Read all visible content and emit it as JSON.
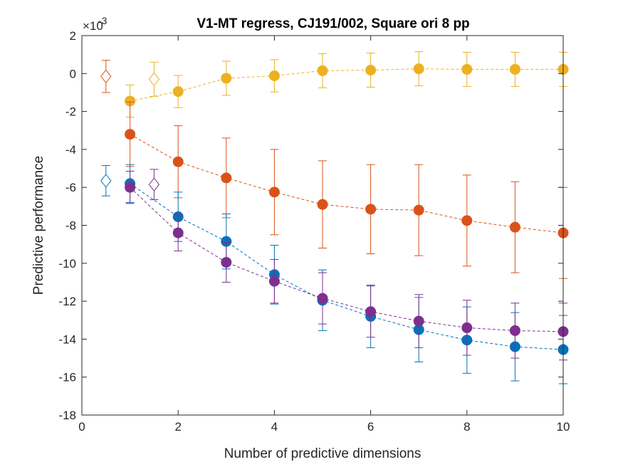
{
  "chart_data": {
    "type": "scatter",
    "title": "V1-MT regress, CJ191/002, Square ori 8 pp",
    "xlabel": "Number of predictive dimensions",
    "ylabel": "Predictive performance",
    "y_exponent_label": "×10",
    "y_exponent_power": "-3",
    "xlim": [
      0,
      10
    ],
    "ylim": [
      -18,
      2
    ],
    "xticks": [
      0,
      2,
      4,
      6,
      8,
      10
    ],
    "yticks": [
      2,
      0,
      -2,
      -4,
      -6,
      -8,
      -10,
      -12,
      -14,
      -16,
      -18
    ],
    "grid": false,
    "series": [
      {
        "color": "#EDB120",
        "x": [
          1,
          2,
          3,
          4,
          5,
          6,
          7,
          8,
          9,
          10
        ],
        "y": [
          -1.45,
          -0.95,
          -0.25,
          -0.12,
          0.15,
          0.18,
          0.25,
          0.22,
          0.22,
          0.22
        ],
        "err": [
          0.85,
          0.85,
          0.9,
          0.85,
          0.9,
          0.9,
          0.9,
          0.9,
          0.9,
          0.9
        ],
        "baseline": {
          "x": 1.5,
          "y": -0.3,
          "err": 0.9
        }
      },
      {
        "color": "#D95319",
        "x": [
          1,
          2,
          3,
          4,
          5,
          6,
          7,
          8,
          9,
          10
        ],
        "y": [
          -3.2,
          -4.65,
          -5.5,
          -6.25,
          -6.9,
          -7.15,
          -7.2,
          -7.75,
          -8.1,
          -8.4
        ],
        "err": [
          1.7,
          1.9,
          2.1,
          2.25,
          2.3,
          2.35,
          2.4,
          2.4,
          2.4,
          2.4
        ],
        "baseline": {
          "x": 0.5,
          "y": -0.15,
          "err": 0.85
        }
      },
      {
        "color": "#0072BD",
        "x": [
          1,
          2,
          3,
          4,
          5,
          6,
          7,
          8,
          9,
          10
        ],
        "y": [
          -5.8,
          -7.55,
          -8.85,
          -10.6,
          -11.95,
          -12.8,
          -13.5,
          -14.05,
          -14.4,
          -14.55
        ],
        "err": [
          1.0,
          1.3,
          1.45,
          1.55,
          1.6,
          1.65,
          1.7,
          1.75,
          1.8,
          1.8
        ],
        "baseline": {
          "x": 0.5,
          "y": -5.65,
          "err": 0.8
        }
      },
      {
        "color": "#7E2F8E",
        "x": [
          1,
          2,
          3,
          4,
          5,
          6,
          7,
          8,
          9,
          10
        ],
        "y": [
          -6.0,
          -8.4,
          -9.95,
          -10.95,
          -11.85,
          -12.55,
          -13.05,
          -13.4,
          -13.55,
          -13.6
        ],
        "err": [
          0.85,
          0.95,
          1.05,
          1.15,
          1.35,
          1.35,
          1.4,
          1.45,
          1.45,
          1.5
        ],
        "baseline": {
          "x": 1.5,
          "y": -5.85,
          "err": 0.8
        }
      }
    ]
  }
}
